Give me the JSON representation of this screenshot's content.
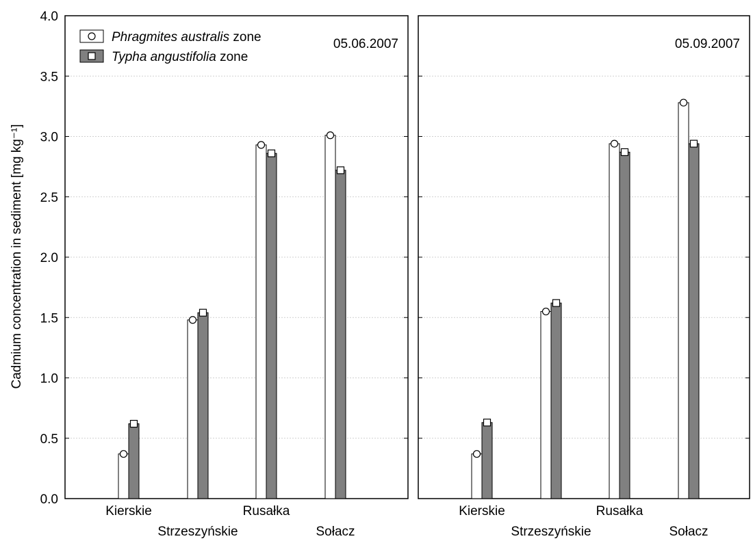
{
  "chart_data": {
    "type": "bar",
    "ylabel": "Cadmium concentration in sediment [mg kg⁻¹]",
    "ylim": [
      0,
      4.0
    ],
    "yticks": [
      "0.0",
      "0.5",
      "1.0",
      "1.5",
      "2.0",
      "2.5",
      "3.0",
      "3.5",
      "4.0"
    ],
    "grid": true,
    "legend": {
      "placement": "top-left",
      "entries": [
        {
          "species": "Phragmites australis",
          "suffix": " zone",
          "marker": "circle",
          "color": "#ffffff"
        },
        {
          "species": "Typha angustifolia",
          "suffix": " zone",
          "marker": "square",
          "color": "#808080"
        }
      ]
    },
    "categories": [
      "Kierskie",
      "Strzeszyńskie",
      "Rusałka",
      "Sołacz"
    ],
    "panels": [
      {
        "date": "05.06.2007",
        "series": [
          {
            "name": "Phragmites australis zone",
            "values": [
              0.37,
              1.48,
              2.93,
              3.01
            ]
          },
          {
            "name": "Typha angustifolia zone",
            "values": [
              0.62,
              1.54,
              2.86,
              2.72
            ]
          }
        ]
      },
      {
        "date": "05.09.2007",
        "series": [
          {
            "name": "Phragmites australis zone",
            "values": [
              0.37,
              1.55,
              2.94,
              3.28
            ]
          },
          {
            "name": "Typha angustifolia zone",
            "values": [
              0.63,
              1.62,
              2.87,
              2.94
            ]
          }
        ]
      }
    ]
  }
}
